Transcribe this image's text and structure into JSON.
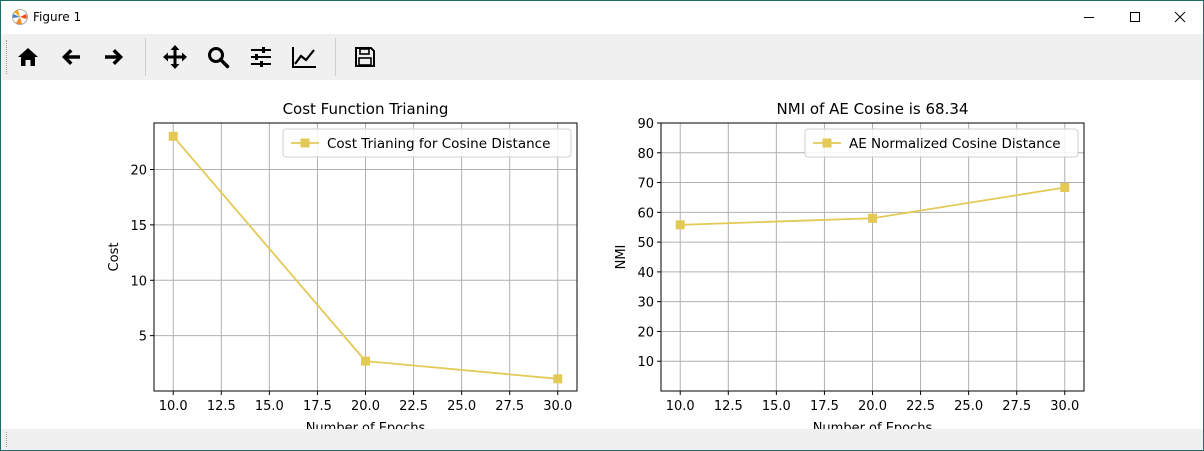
{
  "window": {
    "title": "Figure 1",
    "minimize": "minimize",
    "maximize": "maximize",
    "close": "close"
  },
  "toolbar": {
    "buttons": [
      {
        "name": "home",
        "icon": "home-icon"
      },
      {
        "name": "back",
        "icon": "arrow-left-icon"
      },
      {
        "name": "forward",
        "icon": "arrow-right-icon"
      },
      {
        "name": "pan",
        "icon": "move-icon"
      },
      {
        "name": "zoom",
        "icon": "zoom-icon"
      },
      {
        "name": "configure-subplots",
        "icon": "sliders-icon"
      },
      {
        "name": "edit-axis",
        "icon": "chart-line-icon"
      },
      {
        "name": "save",
        "icon": "save-icon"
      }
    ]
  },
  "chart_data": [
    {
      "type": "line",
      "title": "Cost Function Trianing",
      "xlabel": "Number of Epochs",
      "ylabel": "Cost",
      "x": [
        10,
        20,
        30
      ],
      "series": [
        {
          "name": "Cost Trianing for Cosine Distance",
          "values": [
            23.0,
            2.7,
            1.1
          ],
          "color": "#e3c956",
          "marker": "square"
        }
      ],
      "xlim": [
        9.0,
        31.0
      ],
      "ylim": [
        0.0,
        24.2
      ],
      "xticks": [
        10,
        12.5,
        15,
        17.5,
        20,
        22.5,
        25,
        27.5,
        30
      ],
      "xticklabels": [
        "10.0",
        "12.5",
        "15.0",
        "17.5",
        "20.0",
        "22.5",
        "25.0",
        "27.5",
        "30.0"
      ],
      "yticks": [
        5,
        10,
        15,
        20
      ],
      "yticklabels": [
        "5",
        "10",
        "15",
        "20"
      ],
      "grid": true,
      "legend": "upper right"
    },
    {
      "type": "line",
      "title": "NMI of AE Cosine is 68.34",
      "xlabel": "Number of Epochs",
      "ylabel": "NMI",
      "x": [
        10,
        20,
        30
      ],
      "series": [
        {
          "name": "AE Normalized Cosine Distance",
          "values": [
            55.8,
            58.0,
            68.34
          ],
          "color": "#e3c956",
          "marker": "square"
        }
      ],
      "xlim": [
        9.0,
        31.0
      ],
      "ylim": [
        0.0,
        90.0
      ],
      "xticks": [
        10,
        12.5,
        15,
        17.5,
        20,
        22.5,
        25,
        27.5,
        30
      ],
      "xticklabels": [
        "10.0",
        "12.5",
        "15.0",
        "17.5",
        "20.0",
        "22.5",
        "25.0",
        "27.5",
        "30.0"
      ],
      "yticks": [
        10,
        20,
        30,
        40,
        50,
        60,
        70,
        80,
        90
      ],
      "yticklabels": [
        "10",
        "20",
        "30",
        "40",
        "50",
        "60",
        "70",
        "80",
        "90"
      ],
      "grid": true,
      "legend": "upper right"
    }
  ]
}
